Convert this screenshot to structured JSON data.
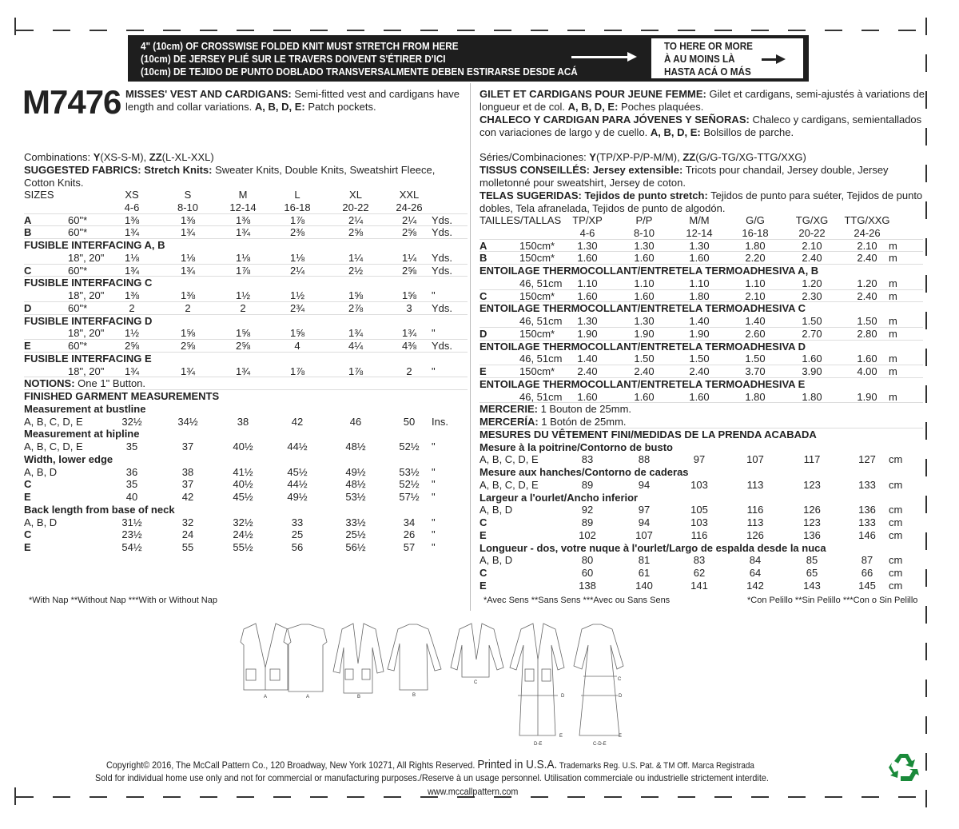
{
  "stretch_guide": {
    "lines": [
      "4\" (10cm) OF CROSSWISE FOLDED KNIT MUST STRETCH FROM HERE",
      "(10cm) DE JERSEY PLIÉ SUR LE TRAVERS DOIVENT S'ÉTIRER D'ICI",
      "(10cm) DE TEJIDO DE PUNTO DOBLADO TRANSVERSALMENTE DEBEN ESTIRARSE DESDE ACÁ"
    ],
    "target": [
      "TO HERE OR MORE",
      "À AU MOINS LÀ",
      "HASTA ACÁ O MÁS"
    ]
  },
  "pattern_number": "M7476",
  "english": {
    "title": "MISSES' VEST AND CARDIGANS:",
    "desc": " Semi-fitted vest and cardigans have length and collar variations. ",
    "views": "A, B, D, E:",
    "views_desc": " Patch pockets.",
    "combinations_label": "Combinations: ",
    "comb_y": "Y",
    "comb_y_val": "(XS-S-M), ",
    "comb_zz": "ZZ",
    "comb_zz_val": "(L-XL-XXL)",
    "fabrics_label": "SUGGESTED FABRICS: Stretch Knits:",
    "fabrics": " Sweater Knits, Double Knits, Sweatshirt Fleece, Cotton Knits.",
    "table": [
      {
        "t": "h",
        "c": [
          "SIZES",
          "",
          "XS",
          "S",
          "M",
          "L",
          "XL",
          "XXL",
          ""
        ]
      },
      {
        "t": "h",
        "c": [
          "",
          "",
          "4-6",
          "8-10",
          "12-14",
          "16-18",
          "20-22",
          "24-26",
          ""
        ],
        "sep": true
      },
      {
        "t": "r",
        "c": [
          "A",
          "60\"*",
          "1⅜",
          "1⅜",
          "1⅜",
          "1⅞",
          "2¼",
          "2¼",
          "Yds."
        ],
        "sep": true
      },
      {
        "t": "r",
        "c": [
          "B",
          "60\"*",
          "1¾",
          "1¾",
          "1¾",
          "2⅜",
          "2⅝",
          "2⅝",
          "Yds."
        ],
        "sep": true
      },
      {
        "t": "b",
        "c": [
          "FUSIBLE INTERFACING A, B"
        ]
      },
      {
        "t": "r",
        "c": [
          "",
          "18\", 20\"",
          "1⅛",
          "1⅛",
          "1⅛",
          "1⅛",
          "1¼",
          "1¼",
          "Yds."
        ],
        "sep": true
      },
      {
        "t": "r",
        "c": [
          "C",
          "60\"*",
          "1¾",
          "1¾",
          "1⅞",
          "2¼",
          "2½",
          "2⅝",
          "Yds."
        ],
        "sep": true
      },
      {
        "t": "b",
        "c": [
          "FUSIBLE INTERFACING C"
        ]
      },
      {
        "t": "r",
        "c": [
          "",
          "18\", 20\"",
          "1⅜",
          "1⅜",
          "1½",
          "1½",
          "1⅝",
          "1⅝",
          "\""
        ],
        "sep": true
      },
      {
        "t": "r",
        "c": [
          "D",
          "60\"*",
          "2",
          "2",
          "2",
          "2¾",
          "2⅞",
          "3",
          "Yds."
        ],
        "sep": true
      },
      {
        "t": "b",
        "c": [
          "FUSIBLE INTERFACING D"
        ]
      },
      {
        "t": "r",
        "c": [
          "",
          "18\", 20\"",
          "1½",
          "1⅝",
          "1⅝",
          "1⅝",
          "1¾",
          "1¾",
          "\""
        ],
        "sep": true
      },
      {
        "t": "r",
        "c": [
          "E",
          "60\"*",
          "2⅝",
          "2⅝",
          "2⅝",
          "4",
          "4¼",
          "4⅜",
          "Yds."
        ],
        "sep": true
      },
      {
        "t": "b",
        "c": [
          "FUSIBLE INTERFACING E"
        ]
      },
      {
        "t": "r",
        "c": [
          "",
          "18\", 20\"",
          "1¾",
          "1¾",
          "1¾",
          "1⅞",
          "1⅞",
          "2",
          "\""
        ],
        "sep": true
      },
      {
        "t": "n",
        "c": [
          "NOTIONS:",
          " One 1\" Button."
        ],
        "sep": true
      },
      {
        "t": "b",
        "c": [
          "FINISHED GARMENT MEASUREMENTS"
        ]
      },
      {
        "t": "b",
        "c": [
          "Measurement at bustline"
        ]
      },
      {
        "t": "r",
        "c": [
          "A, B, C, D, E",
          "",
          "32½",
          "34½",
          "38",
          "42",
          "46",
          "50",
          "Ins."
        ]
      },
      {
        "t": "b",
        "c": [
          "Measurement at hipline"
        ]
      },
      {
        "t": "r",
        "c": [
          "A, B, C, D, E",
          "",
          "35",
          "37",
          "40½",
          "44½",
          "48½",
          "52½",
          "\""
        ]
      },
      {
        "t": "b",
        "c": [
          "Width, lower edge"
        ]
      },
      {
        "t": "r",
        "c": [
          "A, B, D",
          "",
          "36",
          "38",
          "41½",
          "45½",
          "49½",
          "53½",
          "\""
        ]
      },
      {
        "t": "r",
        "c": [
          "C",
          "",
          "35",
          "37",
          "40½",
          "44½",
          "48½",
          "52½",
          "\""
        ]
      },
      {
        "t": "r",
        "c": [
          "E",
          "",
          "40",
          "42",
          "45½",
          "49½",
          "53½",
          "57½",
          "\""
        ]
      },
      {
        "t": "b",
        "c": [
          "Back length from base of neck"
        ]
      },
      {
        "t": "r",
        "c": [
          "A, B, D",
          "",
          "31½",
          "32",
          "32½",
          "33",
          "33½",
          "34",
          "\""
        ]
      },
      {
        "t": "r",
        "c": [
          "C",
          "",
          "23½",
          "24",
          "24½",
          "25",
          "25½",
          "26",
          "\""
        ]
      },
      {
        "t": "r",
        "c": [
          "E",
          "",
          "54½",
          "55",
          "55½",
          "56",
          "56½",
          "57",
          "\""
        ]
      }
    ],
    "footnote": "*With Nap **Without Nap ***With or Without Nap"
  },
  "french_spanish": {
    "fr_title": "GILET ET CARDIGANS POUR JEUNE FEMME:",
    "fr_desc": " Gilet et cardigans, semi-ajustés à variations de longueur et de col. ",
    "fr_views": "A, B, D, E:",
    "fr_views_desc": " Poches plaquées.",
    "es_title": "CHALECO Y CARDIGAN PARA JÓVENES Y SEÑORAS:",
    "es_desc": " Chaleco y cardigans, semientallados con variaciones de largo y de cuello. ",
    "es_views": "A, B, D, E:",
    "es_views_desc": " Bolsillos de parche.",
    "comb_label": "Séries/Combinaciones: ",
    "comb_y": "Y",
    "comb_y_val": "(TP/XP-P/P-M/M), ",
    "comb_zz": "ZZ",
    "comb_zz_val": "(G/G-TG/XG-TTG/XXG)",
    "fr_fabrics_label": "TISSUS CONSEILLÉS: Jersey extensible:",
    "fr_fabrics": " Tricots pour chandail, Jersey double, Jersey molletonné pour sweatshirt, Jersey de coton.",
    "es_fabrics_label": "TELAS SUGERIDAS: Tejidos de punto stretch:",
    "es_fabrics": " Tejidos de punto para suéter, Tejidos de punto dobles, Tela afranelada, Tejidos de punto de algodón.",
    "table": [
      {
        "t": "h",
        "c": [
          "TAILLES/TALLAS",
          "",
          "TP/XP",
          "P/P",
          "M/M",
          "G/G",
          "TG/XG",
          "TTG/XXG",
          ""
        ]
      },
      {
        "t": "h",
        "c": [
          "",
          "",
          "4-6",
          "8-10",
          "12-14",
          "16-18",
          "20-22",
          "24-26",
          ""
        ],
        "sep": true
      },
      {
        "t": "r",
        "c": [
          "A",
          "150cm*",
          "1.30",
          "1.30",
          "1.30",
          "1.80",
          "2.10",
          "2.10",
          "m"
        ],
        "sep": true
      },
      {
        "t": "r",
        "c": [
          "B",
          "150cm*",
          "1.60",
          "1.60",
          "1.60",
          "2.20",
          "2.40",
          "2.40",
          "m"
        ],
        "sep": true
      },
      {
        "t": "b",
        "c": [
          "ENTOILAGE THERMOCOLLANT/ENTRETELA TERMOADHESIVA A, B"
        ]
      },
      {
        "t": "r",
        "c": [
          "",
          "46, 51cm",
          "1.10",
          "1.10",
          "1.10",
          "1.10",
          "1.20",
          "1.20",
          "m"
        ],
        "sep": true
      },
      {
        "t": "r",
        "c": [
          "C",
          "150cm*",
          "1.60",
          "1.60",
          "1.80",
          "2.10",
          "2.30",
          "2.40",
          "m"
        ],
        "sep": true
      },
      {
        "t": "b",
        "c": [
          "ENTOILAGE THERMOCOLLANT/ENTRETELA TERMOADHESIVA C"
        ]
      },
      {
        "t": "r",
        "c": [
          "",
          "46, 51cm",
          "1.30",
          "1.30",
          "1.40",
          "1.40",
          "1.50",
          "1.50",
          "m"
        ],
        "sep": true
      },
      {
        "t": "r",
        "c": [
          "D",
          "150cm*",
          "1.90",
          "1.90",
          "1.90",
          "2.60",
          "2.70",
          "2.80",
          "m"
        ],
        "sep": true
      },
      {
        "t": "b",
        "c": [
          "ENTOILAGE THERMOCOLLANT/ENTRETELA TERMOADHESIVA  D"
        ]
      },
      {
        "t": "r",
        "c": [
          "",
          "46, 51cm",
          "1.40",
          "1.50",
          "1.50",
          "1.50",
          "1.60",
          "1.60",
          "m"
        ],
        "sep": true
      },
      {
        "t": "r",
        "c": [
          "E",
          "150cm*",
          "2.40",
          "2.40",
          "2.40",
          "3.70",
          "3.90",
          "4.00",
          "m"
        ],
        "sep": true
      },
      {
        "t": "b",
        "c": [
          "ENTOILAGE THERMOCOLLANT/ENTRETELA TERMOADHESIVA E"
        ]
      },
      {
        "t": "r",
        "c": [
          "",
          "46, 51cm",
          "1.60",
          "1.60",
          "1.60",
          "1.80",
          "1.80",
          "1.90",
          "m"
        ],
        "sep": true
      },
      {
        "t": "n",
        "c": [
          "MERCERIE:",
          " 1 Bouton de 25mm."
        ]
      },
      {
        "t": "n",
        "c": [
          "MERCERÍA:",
          " 1 Botón de 25mm."
        ],
        "sep": true
      },
      {
        "t": "b",
        "c": [
          "MESURES DU VÊTEMENT FINI/MEDIDAS DE LA PRENDA ACABADA"
        ]
      },
      {
        "t": "b",
        "c": [
          "Mesure à la poitrine/Contorno de busto"
        ]
      },
      {
        "t": "r",
        "c": [
          "A, B, C, D, E",
          "",
          "83",
          "88",
          "97",
          "107",
          "117",
          "127",
          "cm"
        ]
      },
      {
        "t": "b",
        "c": [
          "Mesure aux hanches/Contorno de caderas"
        ]
      },
      {
        "t": "r",
        "c": [
          "A, B, C, D, E",
          "",
          "89",
          "94",
          "103",
          "113",
          "123",
          "133",
          "cm"
        ]
      },
      {
        "t": "b",
        "c": [
          "Largeur a l'ourlet/Ancho inferior"
        ]
      },
      {
        "t": "r",
        "c": [
          "A, B, D",
          "",
          "92",
          "97",
          "105",
          "116",
          "126",
          "136",
          "cm"
        ]
      },
      {
        "t": "r",
        "c": [
          "C",
          "",
          "89",
          "94",
          "103",
          "113",
          "123",
          "133",
          "cm"
        ]
      },
      {
        "t": "r",
        "c": [
          "E",
          "",
          "102",
          "107",
          "116",
          "126",
          "136",
          "146",
          "cm"
        ]
      },
      {
        "t": "b",
        "c": [
          "Longueur - dos, votre nuque à l'ourlet/Largo de espalda desde la nuca"
        ]
      },
      {
        "t": "r",
        "c": [
          "A, B, D",
          "",
          "80",
          "81",
          "83",
          "84",
          "85",
          "87",
          "cm"
        ]
      },
      {
        "t": "r",
        "c": [
          "C",
          "",
          "60",
          "61",
          "62",
          "64",
          "65",
          "66",
          "cm"
        ]
      },
      {
        "t": "r",
        "c": [
          "E",
          "",
          "138",
          "140",
          "141",
          "142",
          "143",
          "145",
          "cm"
        ]
      }
    ],
    "footnote_fr": "*Avec Sens **Sans Sens ***Avec ou Sans Sens",
    "footnote_es": "*Con Pelillo **Sin Pelillo ***Con o Sin Pelillo"
  },
  "sketch_labels": [
    "A",
    "A",
    "B",
    "B",
    "C",
    "D",
    "E",
    "D-E",
    "C",
    "D",
    "E",
    "C-D-E"
  ],
  "footer": {
    "copyright": "Copyright© 2016,  The McCall Pattern Co., 120 Broadway, New York 10271, All Rights Reserved. ",
    "printed": "Printed in U.S.A.",
    "trademark": "  Trademarks Reg. U.S. Pat. & TM Off. Marca Registrada",
    "use": "Sold for individual home use only and not for commercial or manufacturing purposes./Reserve à un usage personnel. Utilisation commerciale ou industrielle strictement interdite.",
    "website": "www.mccallpattern.com"
  },
  "icons": {
    "recycle": "recycle-icon",
    "recycle_color": "#1a8a3a"
  }
}
